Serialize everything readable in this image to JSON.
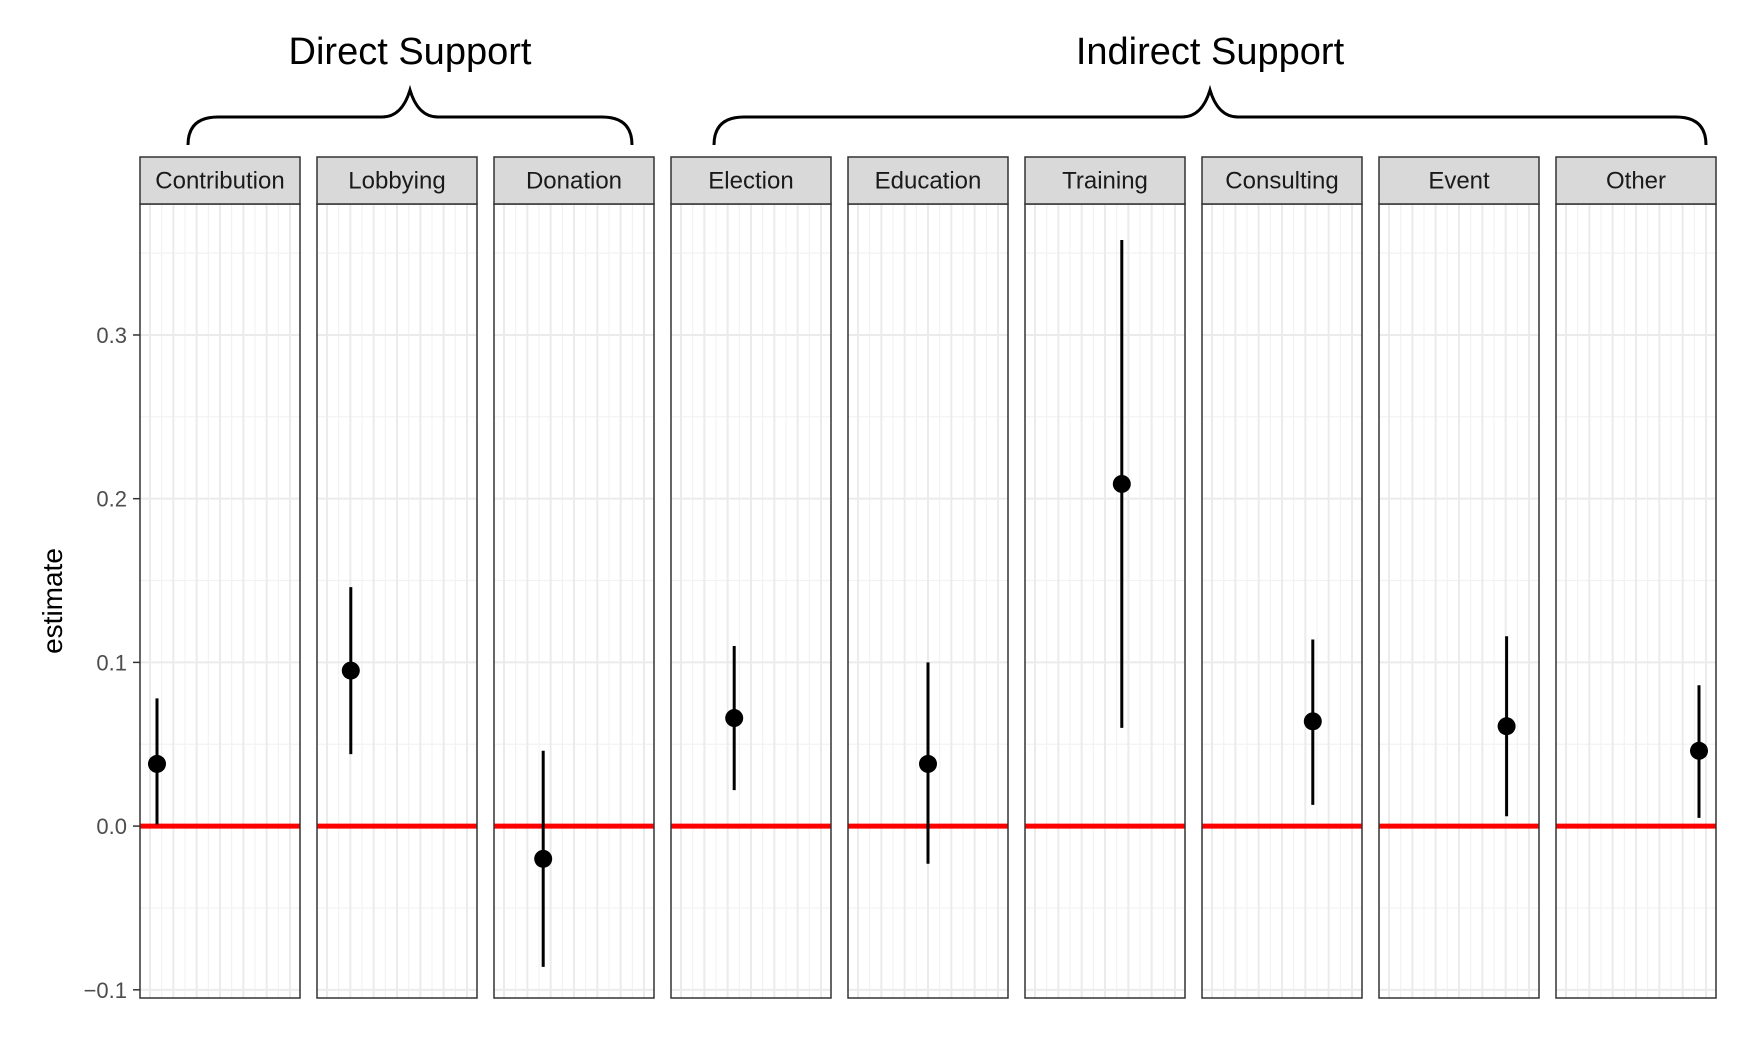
{
  "chart_data": {
    "type": "scatter",
    "variant": "faceted point estimates with confidence intervals",
    "ylabel": "estimate",
    "xlabel": "",
    "ylim": [
      -0.105,
      0.38
    ],
    "yticks": [
      -0.1,
      0.0,
      0.1,
      0.2,
      0.3
    ],
    "ytick_labels": [
      "−0.1",
      "0.0",
      "0.1",
      "0.2",
      "0.3"
    ],
    "grid": true,
    "x_tick_labels_shown": false,
    "reference_line": {
      "y": 0.0,
      "color": "#ff0000"
    },
    "groups": [
      {
        "label": "Direct Support",
        "panels": [
          "Contribution",
          "Lobbying",
          "Donation"
        ]
      },
      {
        "label": "Indirect Support",
        "panels": [
          "Election",
          "Education",
          "Training",
          "Consulting",
          "Event",
          "Other"
        ]
      }
    ],
    "panels": [
      {
        "name": "Contribution",
        "x_position": 0.05,
        "estimate": 0.038,
        "lower": 0.001,
        "upper": 0.078
      },
      {
        "name": "Lobbying",
        "x_position": 0.17,
        "estimate": 0.095,
        "lower": 0.044,
        "upper": 0.146
      },
      {
        "name": "Donation",
        "x_position": 0.28,
        "estimate": -0.02,
        "lower": -0.086,
        "upper": 0.046
      },
      {
        "name": "Election",
        "x_position": 0.38,
        "estimate": 0.066,
        "lower": 0.022,
        "upper": 0.11
      },
      {
        "name": "Education",
        "x_position": 0.5,
        "estimate": 0.038,
        "lower": -0.023,
        "upper": 0.1
      },
      {
        "name": "Training",
        "x_position": 0.62,
        "estimate": 0.209,
        "lower": 0.06,
        "upper": 0.358
      },
      {
        "name": "Consulting",
        "x_position": 0.72,
        "estimate": 0.064,
        "lower": 0.013,
        "upper": 0.114
      },
      {
        "name": "Event",
        "x_position": 0.84,
        "estimate": 0.061,
        "lower": 0.006,
        "upper": 0.116
      },
      {
        "name": "Other",
        "x_position": 0.95,
        "estimate": 0.046,
        "lower": 0.005,
        "upper": 0.086
      }
    ]
  },
  "colors": {
    "strip_fill": "#d9d9d9",
    "panel_border": "#333333",
    "grid_major": "#ebebeb",
    "grid_minor": "#f2f2f2",
    "point": "#000000",
    "reference_line": "#ff0000"
  }
}
